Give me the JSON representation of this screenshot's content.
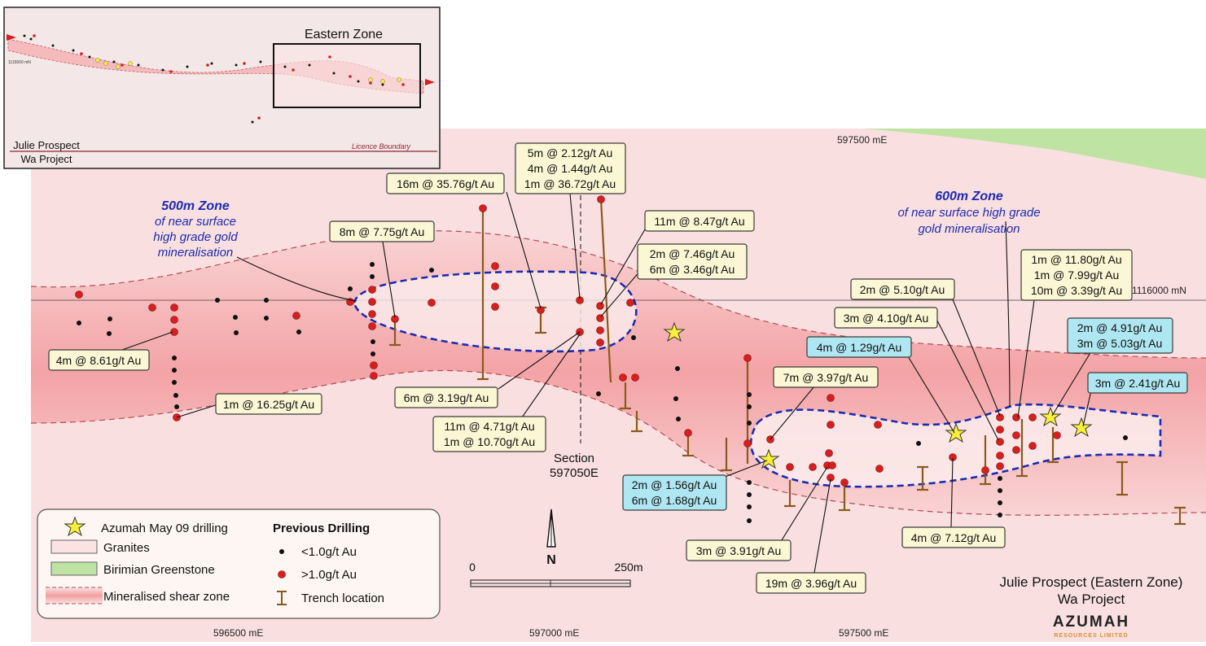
{
  "inset": {
    "eastern_zone_label": "Eastern Zone",
    "coord_label": "1115500 mN",
    "licence_label": "Licence Boundary",
    "title_line1": "Julie Prospect",
    "title_line2": "Wa Project"
  },
  "coordinates": {
    "easting_top": "597500  mE",
    "northing_right": "1116000  mN",
    "easting_bottom_1": "596500  mE",
    "easting_bottom_2": "597000  mE",
    "easting_bottom_3": "597500  mE"
  },
  "zones": {
    "zone500_title": "500m Zone",
    "zone500_line1": "of near surface",
    "zone500_line2": "high grade gold",
    "zone500_line3": "mineralisation",
    "zone600_title": "600m Zone",
    "zone600_line1": "of near surface high grade",
    "zone600_line2": "gold mineralisation"
  },
  "section": {
    "line1": "Section",
    "line2": "597050E"
  },
  "intercepts": {
    "l1": [
      "4m @ 8.61g/t Au"
    ],
    "l2": [
      "1m @ 16.25g/t Au"
    ],
    "l3": [
      "8m @ 7.75g/t Au"
    ],
    "l4": [
      "16m @ 35.76g/t Au"
    ],
    "l5": [
      "5m @ 2.12g/t Au",
      "4m @ 1.44g/t Au",
      "1m @ 36.72g/t Au"
    ],
    "l6": [
      "11m @ 8.47g/t Au"
    ],
    "l7": [
      "2m @ 7.46g/t Au",
      "6m @ 3.46g/t Au"
    ],
    "l8": [
      "6m @ 3.19g/t Au"
    ],
    "l9": [
      "11m @ 4.71g/t Au",
      "1m @ 10.70g/t Au"
    ],
    "l10": [
      "2m @ 1.56g/t Au",
      "6m @ 1.68g/t Au"
    ],
    "l11": [
      "7m @ 3.97g/t Au"
    ],
    "l12": [
      "4m @ 1.29g/t Au"
    ],
    "l13": [
      "3m @ 4.10g/t Au"
    ],
    "l14": [
      "2m @ 5.10g/t Au"
    ],
    "l15": [
      "1m @ 11.80g/t Au",
      "1m @ 7.99g/t Au",
      "10m @ 3.39g/t Au"
    ],
    "l16": [
      "2m @ 4.91g/t Au",
      "3m @ 5.03g/t Au"
    ],
    "l17": [
      "3m @ 2.41g/t Au"
    ],
    "l18": [
      "3m @ 3.91g/t Au"
    ],
    "l19": [
      "19m @ 3.96g/t Au"
    ],
    "l20": [
      "4m @ 7.12g/t Au"
    ]
  },
  "legend": {
    "azumah_drilling": "Azumah May 09 drilling",
    "granites": "Granites",
    "greenstone": "Birimian Greenstone",
    "shear_zone": "Mineralised shear zone",
    "previous_drilling": "Previous Drilling",
    "low_grade": "<1.0g/t Au",
    "high_grade": ">1.0g/t Au",
    "trench": "Trench location"
  },
  "scale": {
    "start": "0",
    "end": "250m"
  },
  "north_arrow": "N",
  "title": {
    "line1": "Julie Prospect (Eastern Zone)",
    "line2": "Wa Project"
  },
  "logo": {
    "name": "AZUMAH",
    "subtitle": "RESOURCES LIMITED"
  },
  "colors": {
    "granite": "#f9dfe0",
    "greenstone": "#bfe3a3",
    "shear": "#f2a0a3",
    "high_grade_dot": "#d81e1e",
    "low_grade_dot": "#111111",
    "star": "#f7ef3a",
    "zone_outline": "#1d2bb3",
    "label_yellow": "#fbf6d3",
    "label_cyan": "#aee6f2",
    "trench": "#8a5a1c"
  }
}
